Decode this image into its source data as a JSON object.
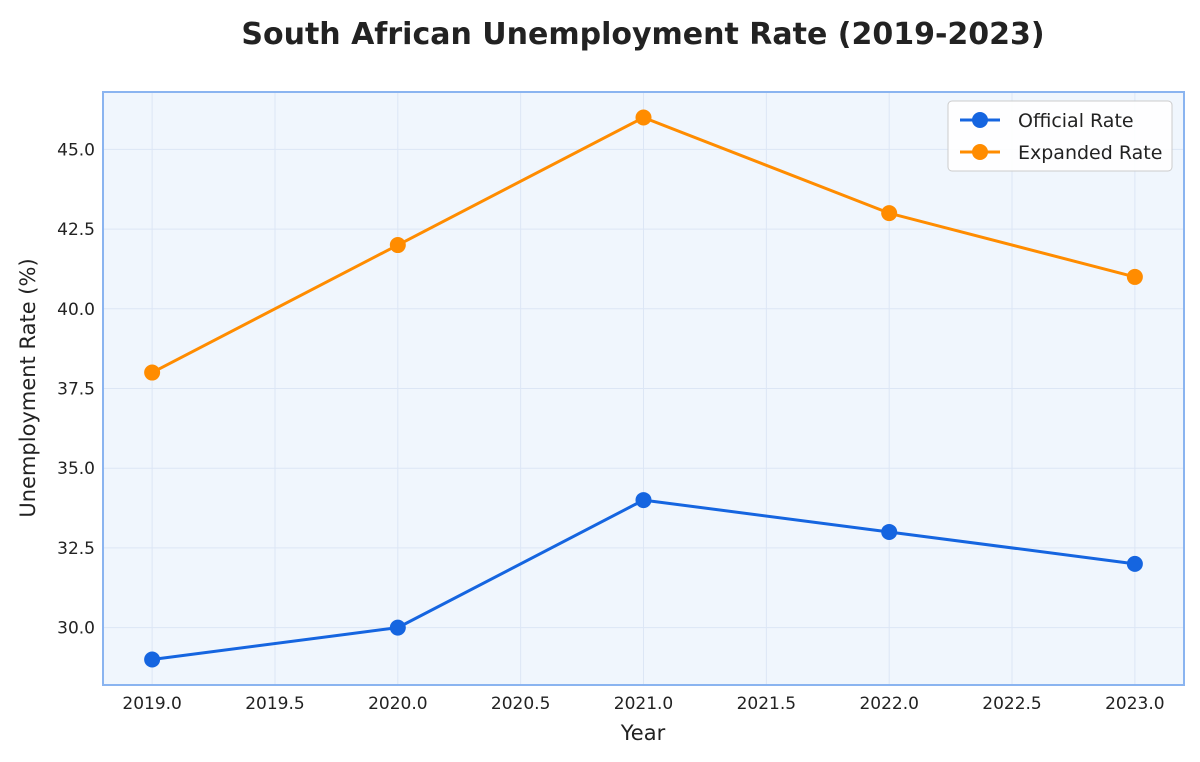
{
  "chart_data": {
    "type": "line",
    "title": "South African Unemployment Rate (2019-2023)",
    "xlabel": "Year",
    "ylabel": "Unemployment Rate (%)",
    "x": [
      2019,
      2020,
      2021,
      2022,
      2023
    ],
    "xlim": [
      2018.8,
      2023.2
    ],
    "ylim": [
      28.2,
      46.8
    ],
    "xticks": [
      "2019.0",
      "2019.5",
      "2020.0",
      "2020.5",
      "2021.0",
      "2021.5",
      "2022.0",
      "2022.5",
      "2023.0"
    ],
    "yticks": [
      "30.0",
      "32.5",
      "35.0",
      "37.5",
      "40.0",
      "42.5",
      "45.0"
    ],
    "grid": true,
    "legend_position": "top-right",
    "series": [
      {
        "name": "Official Rate",
        "color": "#1565e0",
        "values": [
          29,
          30,
          34,
          33,
          32
        ]
      },
      {
        "name": "Expanded Rate",
        "color": "#ff8c00",
        "values": [
          38,
          42,
          46,
          43,
          41
        ]
      }
    ],
    "colors": {
      "plot_background": "#f0f6fd",
      "plot_border": "#8ab4f0",
      "grid": "#dce6f5"
    }
  }
}
